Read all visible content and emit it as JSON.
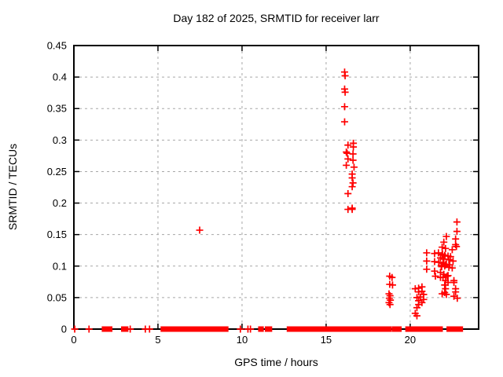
{
  "window": {
    "background": "#ffffff",
    "text_color": "#000000"
  },
  "chart_data": {
    "type": "scatter",
    "title": "Day 182 of 2025, SRMTID for receiver larr",
    "xlabel": "GPS time / hours",
    "ylabel": "SRMTID / TECUs",
    "xlim": [
      0,
      24.07
    ],
    "ylim": [
      0,
      0.45
    ],
    "x_ticks": [
      0,
      5,
      10,
      15,
      20
    ],
    "x_tick_labels": [
      "0",
      "5",
      "10",
      "15",
      "20"
    ],
    "y_ticks": [
      0,
      0.05,
      0.1,
      0.15,
      0.2,
      0.25,
      0.3,
      0.35,
      0.4,
      0.45
    ],
    "y_tick_labels": [
      "0",
      "0.05",
      "0.1",
      "0.15",
      "0.2",
      "0.25",
      "0.3",
      "0.35",
      "0.4",
      "0.45"
    ],
    "grid": true,
    "grid_color": "#a8a8a8",
    "marker": {
      "shape": "plus",
      "color": "#ff0000",
      "size": 9
    },
    "series": [
      {
        "name": "SRMTID",
        "points": [
          [
            7.48,
            0.157
          ],
          [
            16.1,
            0.408
          ],
          [
            16.13,
            0.402
          ],
          [
            16.1,
            0.381
          ],
          [
            16.13,
            0.376
          ],
          [
            16.1,
            0.353
          ],
          [
            16.1,
            0.329
          ],
          [
            16.62,
            0.295
          ],
          [
            16.3,
            0.292
          ],
          [
            16.62,
            0.289
          ],
          [
            16.2,
            0.281
          ],
          [
            16.25,
            0.279
          ],
          [
            16.6,
            0.278
          ],
          [
            16.3,
            0.27
          ],
          [
            16.6,
            0.268
          ],
          [
            16.2,
            0.26
          ],
          [
            16.66,
            0.257
          ],
          [
            16.55,
            0.246
          ],
          [
            16.55,
            0.24
          ],
          [
            16.6,
            0.232
          ],
          [
            16.55,
            0.226
          ],
          [
            16.3,
            0.215
          ],
          [
            16.55,
            0.192
          ],
          [
            16.3,
            0.19
          ],
          [
            16.55,
            0.19
          ],
          [
            18.78,
            0.084
          ],
          [
            18.92,
            0.082
          ],
          [
            18.78,
            0.071
          ],
          [
            18.95,
            0.07
          ],
          [
            18.74,
            0.056
          ],
          [
            18.8,
            0.053
          ],
          [
            18.76,
            0.049
          ],
          [
            18.82,
            0.046
          ],
          [
            18.74,
            0.042
          ],
          [
            18.8,
            0.039
          ],
          [
            20.3,
            0.064
          ],
          [
            20.5,
            0.065
          ],
          [
            20.7,
            0.067
          ],
          [
            20.5,
            0.059
          ],
          [
            20.7,
            0.06
          ],
          [
            20.8,
            0.055
          ],
          [
            20.4,
            0.05
          ],
          [
            20.6,
            0.051
          ],
          [
            20.8,
            0.047
          ],
          [
            20.5,
            0.045
          ],
          [
            20.7,
            0.042
          ],
          [
            20.5,
            0.039
          ],
          [
            20.4,
            0.034
          ],
          [
            20.3,
            0.025
          ],
          [
            20.4,
            0.021
          ],
          [
            22.78,
            0.17
          ],
          [
            22.78,
            0.155
          ],
          [
            22.15,
            0.147
          ],
          [
            22.7,
            0.143
          ],
          [
            22.0,
            0.138
          ],
          [
            22.7,
            0.134
          ],
          [
            22.75,
            0.131
          ],
          [
            21.9,
            0.13
          ],
          [
            22.1,
            0.128
          ],
          [
            22.5,
            0.126
          ],
          [
            20.98,
            0.121
          ],
          [
            21.45,
            0.12
          ],
          [
            21.68,
            0.121
          ],
          [
            21.9,
            0.118
          ],
          [
            21.92,
            0.119
          ],
          [
            22.05,
            0.117
          ],
          [
            22.07,
            0.116
          ],
          [
            22.25,
            0.116
          ],
          [
            22.4,
            0.115
          ],
          [
            21.8,
            0.113
          ],
          [
            22.0,
            0.111
          ],
          [
            22.3,
            0.11
          ],
          [
            22.55,
            0.108
          ],
          [
            20.98,
            0.108
          ],
          [
            21.45,
            0.107
          ],
          [
            21.7,
            0.106
          ],
          [
            21.95,
            0.105
          ],
          [
            21.96,
            0.104
          ],
          [
            22.15,
            0.103
          ],
          [
            22.35,
            0.102
          ],
          [
            22.1,
            0.102
          ],
          [
            21.85,
            0.101
          ],
          [
            22.05,
            0.1
          ],
          [
            21.87,
            0.099
          ],
          [
            22.3,
            0.098
          ],
          [
            22.5,
            0.097
          ],
          [
            20.98,
            0.095
          ],
          [
            21.45,
            0.092
          ],
          [
            21.8,
            0.09
          ],
          [
            22.0,
            0.087
          ],
          [
            21.5,
            0.084
          ],
          [
            22.2,
            0.084
          ],
          [
            22.25,
            0.085
          ],
          [
            21.8,
            0.082
          ],
          [
            21.95,
            0.082
          ],
          [
            22.1,
            0.077
          ],
          [
            22.6,
            0.077
          ],
          [
            22.25,
            0.074
          ],
          [
            22.6,
            0.074
          ],
          [
            22.05,
            0.07
          ],
          [
            22.1,
            0.064
          ],
          [
            22.7,
            0.064
          ],
          [
            22.05,
            0.058
          ],
          [
            21.9,
            0.056
          ],
          [
            22.7,
            0.059
          ],
          [
            22.15,
            0.055
          ],
          [
            22.6,
            0.052
          ],
          [
            22.8,
            0.049
          ]
        ]
      }
    ],
    "zero_band_singles": [
      0.05,
      0.9,
      3.35,
      4.25,
      4.5,
      9.9,
      10.35,
      10.5
    ],
    "zero_band_segments": [
      [
        1.75,
        2.2
      ],
      [
        2.9,
        3.15
      ],
      [
        5.25,
        5.8
      ],
      [
        5.95,
        6.7
      ],
      [
        6.8,
        8.1
      ],
      [
        8.2,
        8.75
      ],
      [
        8.85,
        9.1
      ],
      [
        11.05,
        11.2
      ],
      [
        11.45,
        11.7
      ],
      [
        12.75,
        12.95
      ],
      [
        13.0,
        13.2
      ],
      [
        13.35,
        14.1
      ],
      [
        14.15,
        14.6
      ],
      [
        14.65,
        16.1
      ],
      [
        16.15,
        16.5
      ],
      [
        16.6,
        16.95
      ],
      [
        17.0,
        17.2
      ],
      [
        17.35,
        18.1
      ],
      [
        18.15,
        18.3
      ],
      [
        18.35,
        18.8
      ],
      [
        19.0,
        19.4
      ],
      [
        19.8,
        20.5
      ],
      [
        20.6,
        20.75
      ],
      [
        20.85,
        21.45
      ],
      [
        21.55,
        21.85
      ],
      [
        22.25,
        22.6
      ],
      [
        22.7,
        23.05
      ]
    ]
  }
}
